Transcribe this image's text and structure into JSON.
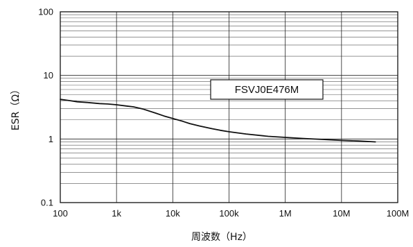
{
  "chart_data": {
    "type": "line",
    "title": "",
    "xlabel": "周波数（Hz）",
    "ylabel": "ESR（Ω）",
    "xscale": "log",
    "yscale": "log",
    "xlim": [
      100,
      100000000
    ],
    "ylim": [
      0.1,
      100
    ],
    "grid": true,
    "x_tick_labels": [
      "100",
      "1k",
      "10k",
      "100k",
      "1M",
      "10M",
      "100M"
    ],
    "y_tick_labels": [
      "0.1",
      "1",
      "10",
      "100"
    ],
    "legend": {
      "placement": "top-right",
      "label": "FSVJ0E476M"
    },
    "series": [
      {
        "name": "FSVJ0E476M",
        "color": "#111111",
        "x": [
          100,
          150,
          200,
          300,
          500,
          700,
          1000,
          1500,
          2000,
          3000,
          5000,
          7000,
          10000,
          15000,
          20000,
          30000,
          50000,
          70000,
          100000,
          200000,
          500000,
          1000000,
          2000000,
          5000000,
          10000000,
          20000000,
          40000000
        ],
        "y": [
          4.2,
          4.0,
          3.85,
          3.75,
          3.6,
          3.55,
          3.45,
          3.3,
          3.2,
          2.95,
          2.55,
          2.3,
          2.1,
          1.9,
          1.75,
          1.6,
          1.45,
          1.37,
          1.3,
          1.2,
          1.1,
          1.06,
          1.02,
          0.98,
          0.95,
          0.93,
          0.9
        ]
      }
    ]
  }
}
